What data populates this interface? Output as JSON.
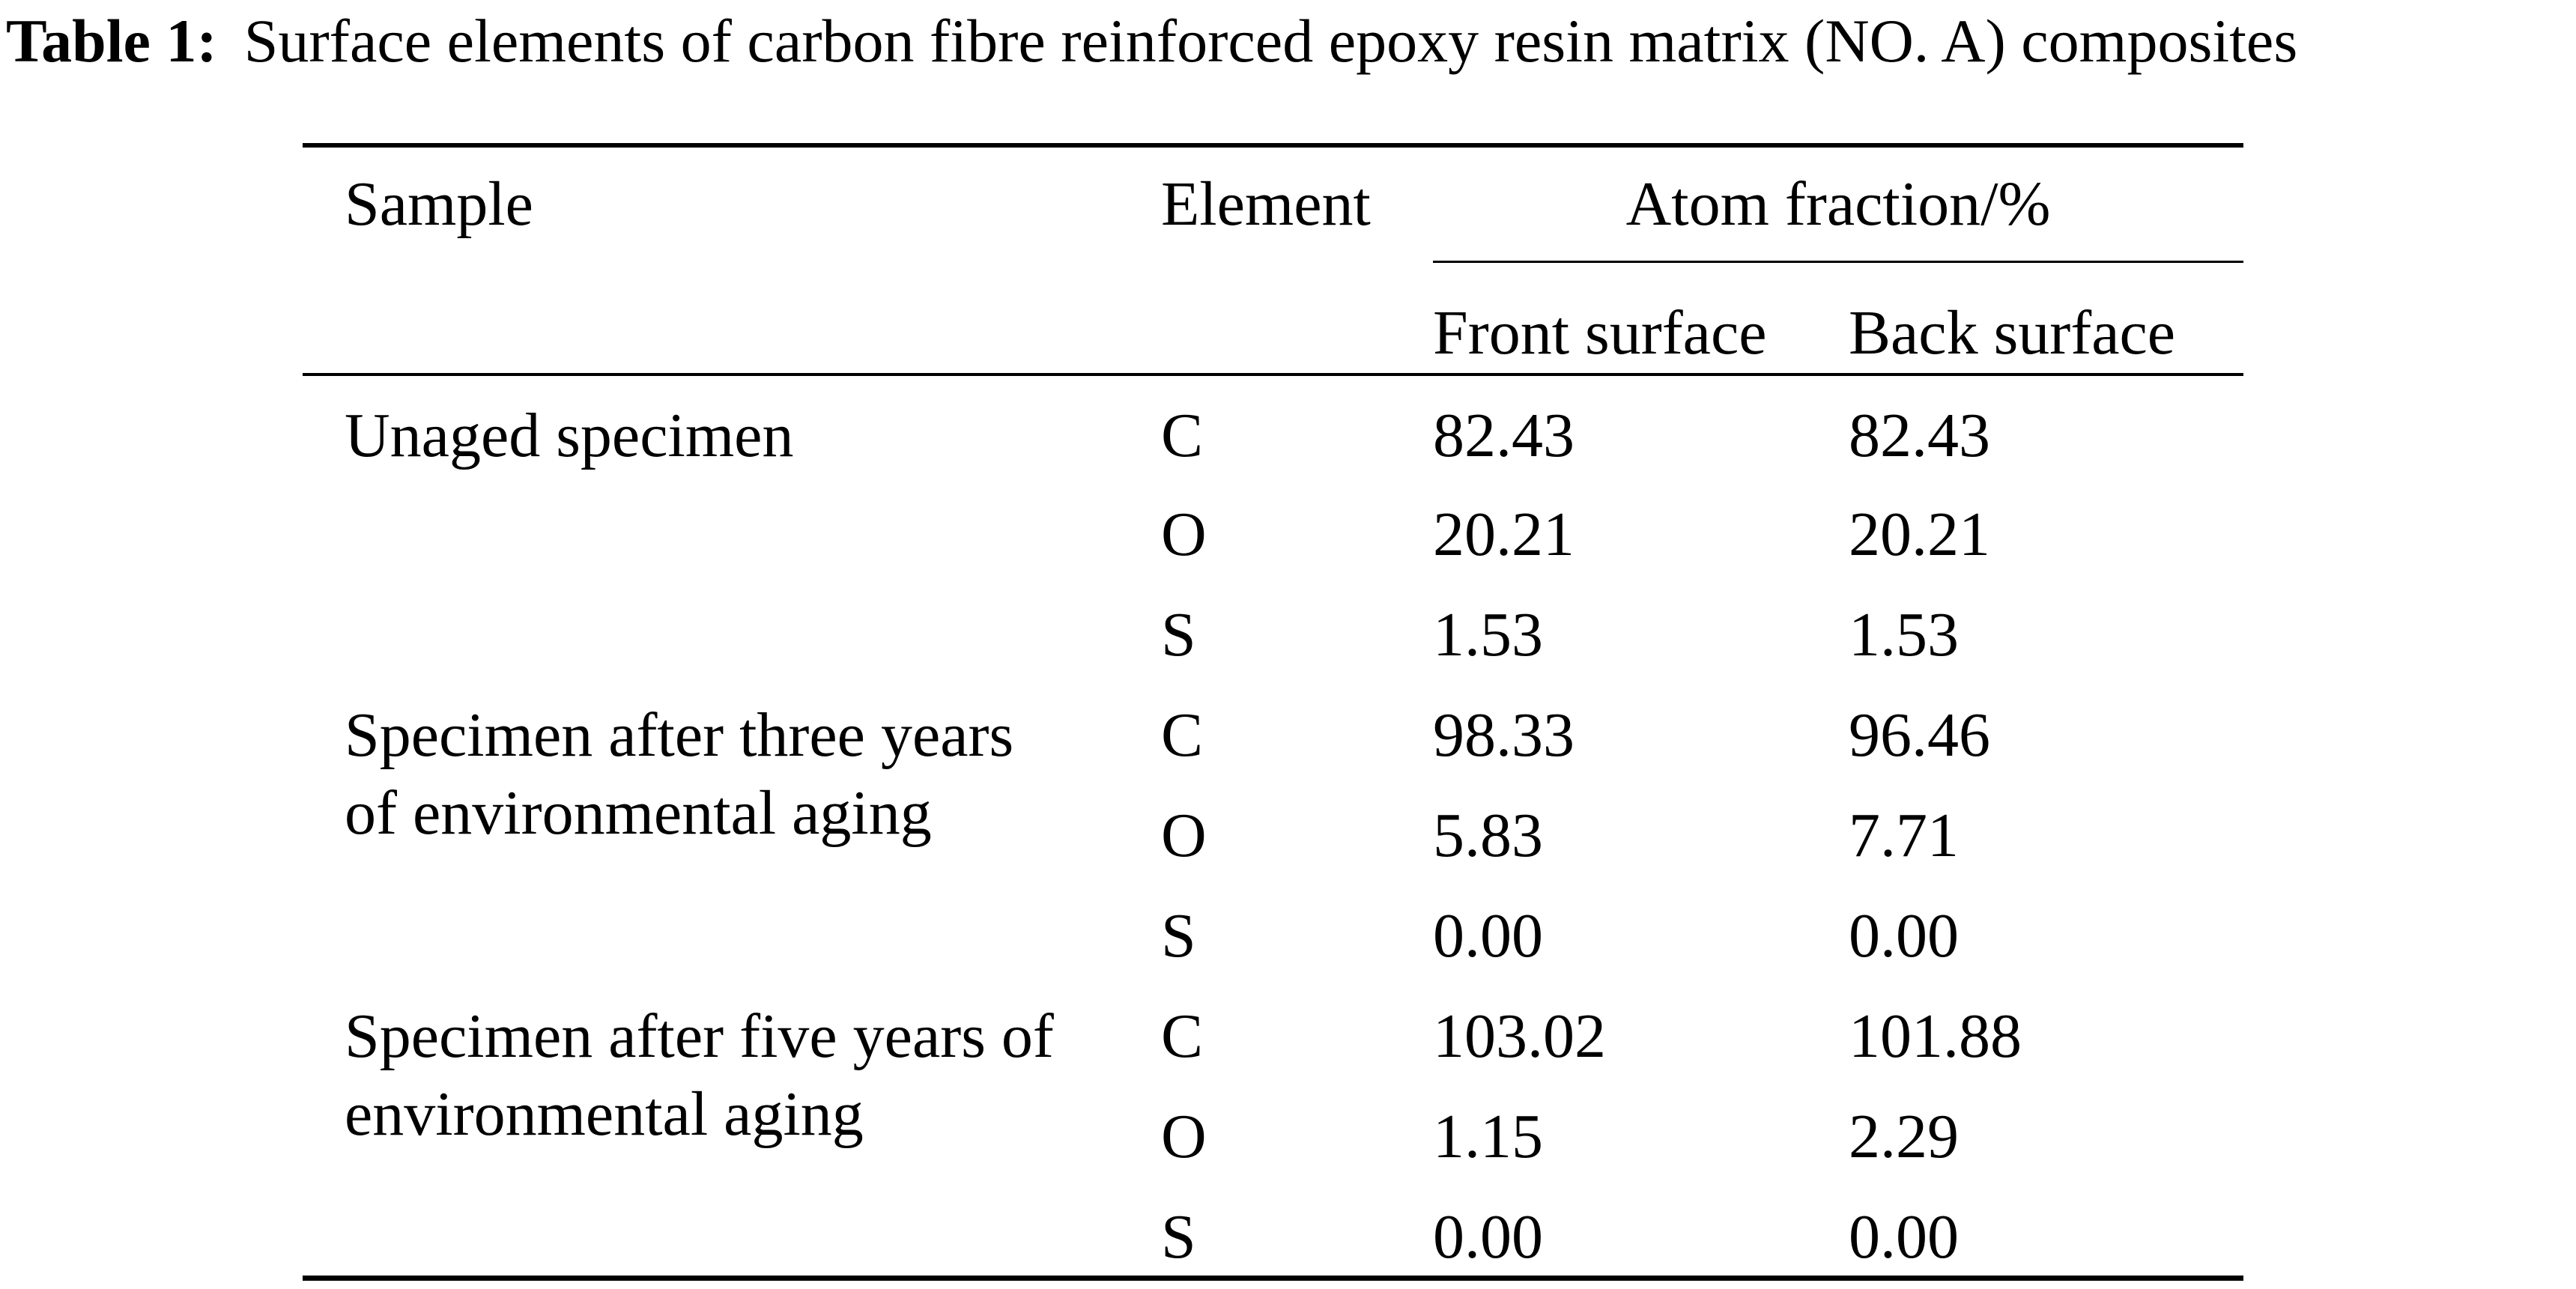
{
  "caption": {
    "label": "Table 1:",
    "text": "Surface elements of carbon fibre reinforced epoxy resin matrix (NO. A) composites"
  },
  "table": {
    "headers": {
      "sample": "Sample",
      "element": "Element",
      "atom_fraction": "Atom fraction/%",
      "front_surface": "Front surface",
      "back_surface": "Back surface"
    },
    "groups": [
      {
        "sample": [
          "Unaged specimen"
        ],
        "rows": [
          {
            "element": "C",
            "front": "82.43",
            "back": "82.43"
          },
          {
            "element": "O",
            "front": "20.21",
            "back": "20.21"
          },
          {
            "element": "S",
            "front": "1.53",
            "back": "1.53"
          }
        ]
      },
      {
        "sample": [
          "Specimen after three years",
          "of environmental aging"
        ],
        "rows": [
          {
            "element": "C",
            "front": "98.33",
            "back": "96.46"
          },
          {
            "element": "O",
            "front": "5.83",
            "back": "7.71"
          },
          {
            "element": "S",
            "front": "0.00",
            "back": "0.00"
          }
        ]
      },
      {
        "sample": [
          "Specimen after five years of",
          "environmental aging"
        ],
        "rows": [
          {
            "element": "C",
            "front": "103.02",
            "back": "101.88"
          },
          {
            "element": "O",
            "front": "1.15",
            "back": "2.29"
          },
          {
            "element": "S",
            "front": "0.00",
            "back": "0.00"
          }
        ]
      }
    ]
  },
  "chart_data": {
    "type": "table",
    "title": "Table 1: Surface elements of carbon fibre reinforced epoxy resin matrix (NO. A) composites",
    "columns": [
      "Sample",
      "Element",
      "Atom fraction/% Front surface",
      "Atom fraction/% Back surface"
    ],
    "rows": [
      [
        "Unaged specimen",
        "C",
        82.43,
        82.43
      ],
      [
        "Unaged specimen",
        "O",
        20.21,
        20.21
      ],
      [
        "Unaged specimen",
        "S",
        1.53,
        1.53
      ],
      [
        "Specimen after three years of environmental aging",
        "C",
        98.33,
        96.46
      ],
      [
        "Specimen after three years of environmental aging",
        "O",
        5.83,
        7.71
      ],
      [
        "Specimen after three years of environmental aging",
        "S",
        0.0,
        0.0
      ],
      [
        "Specimen after five years of environmental aging",
        "C",
        103.02,
        101.88
      ],
      [
        "Specimen after five years of environmental aging",
        "O",
        1.15,
        2.29
      ],
      [
        "Specimen after five years of environmental aging",
        "S",
        0.0,
        0.0
      ]
    ]
  }
}
